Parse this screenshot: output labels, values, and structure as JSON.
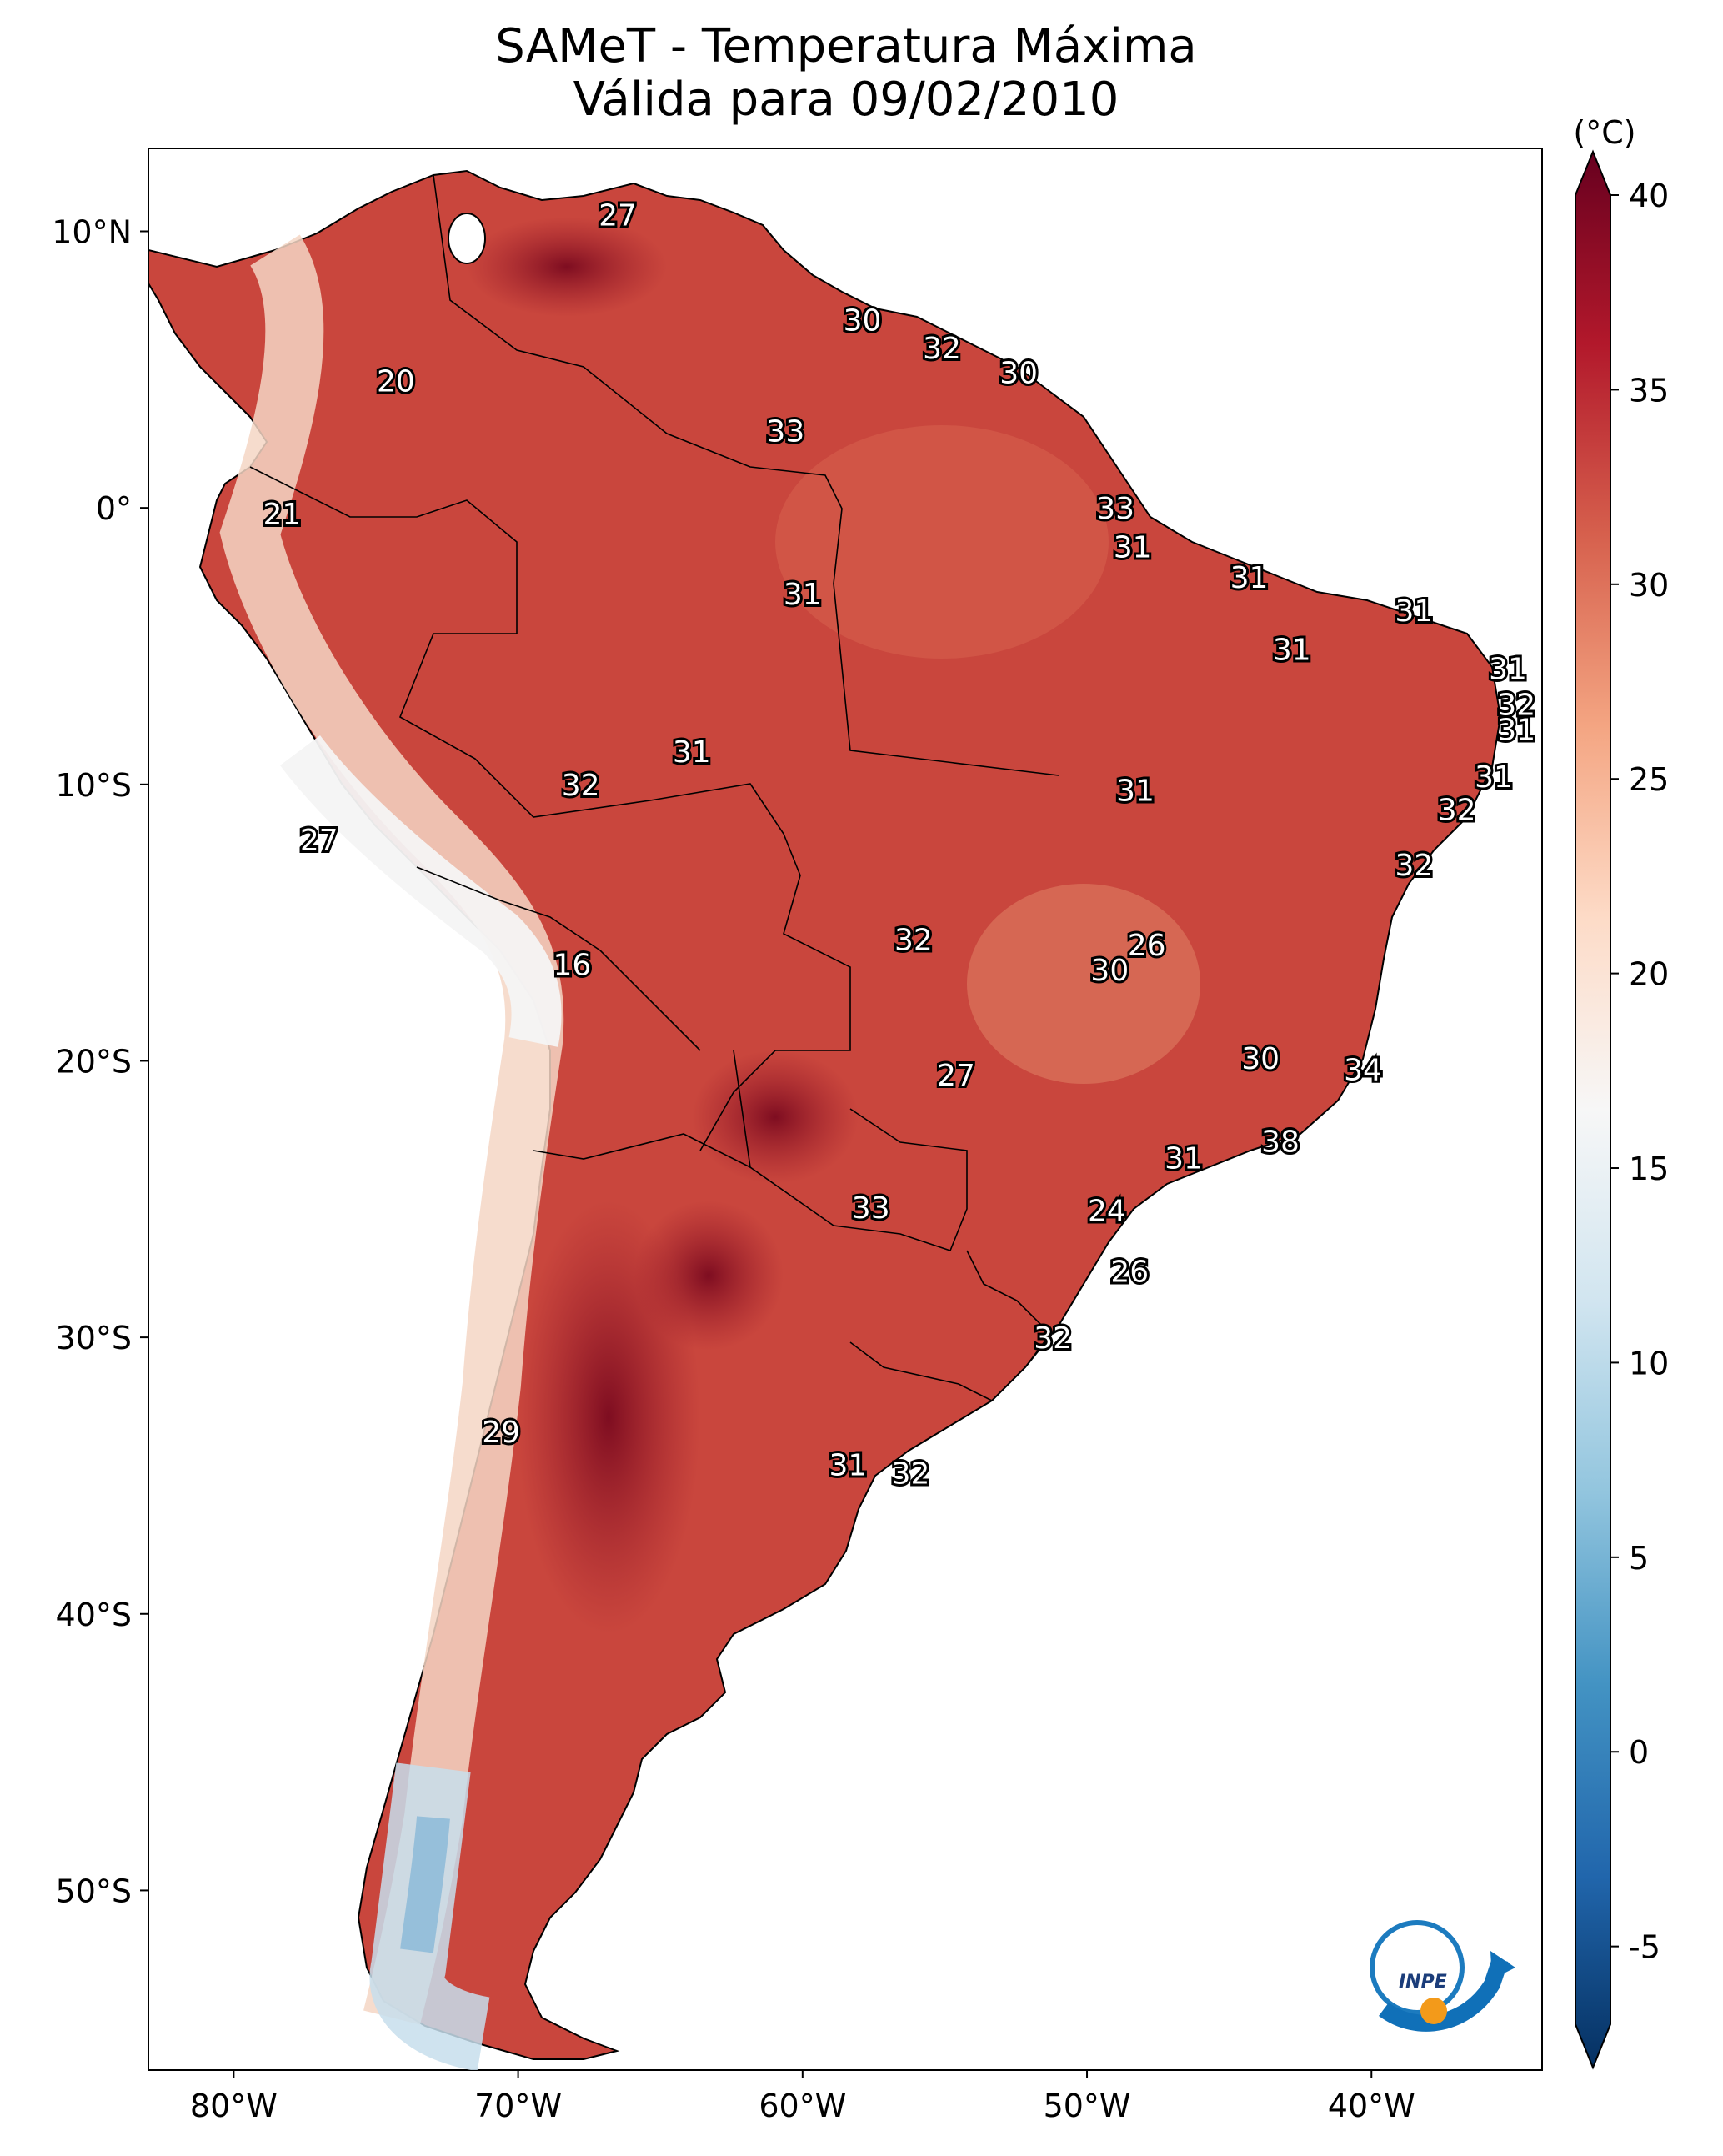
{
  "title": {
    "line1": "SAMeT - Temperatura Máxima",
    "line2": "Válida para 09/02/2010"
  },
  "unit_label": "(°C)",
  "lat_ticks": [
    {
      "label": "10°N",
      "lat": 10
    },
    {
      "label": "0°",
      "lat": 0
    },
    {
      "label": "10°S",
      "lat": -10
    },
    {
      "label": "20°S",
      "lat": -20
    },
    {
      "label": "30°S",
      "lat": -30
    },
    {
      "label": "40°S",
      "lat": -40
    },
    {
      "label": "50°S",
      "lat": -50
    }
  ],
  "lon_ticks": [
    {
      "label": "80°W",
      "lon": -80
    },
    {
      "label": "70°W",
      "lon": -70
    },
    {
      "label": "60°W",
      "lon": -60
    },
    {
      "label": "50°W",
      "lon": -50
    },
    {
      "label": "40°W",
      "lon": -40
    }
  ],
  "colorbar": {
    "min": -7,
    "max": 40,
    "ticks": [
      {
        "label": "40",
        "value": 40
      },
      {
        "label": "35",
        "value": 35
      },
      {
        "label": "30",
        "value": 30
      },
      {
        "label": "25",
        "value": 25
      },
      {
        "label": "20",
        "value": 20
      },
      {
        "label": "15",
        "value": 15
      },
      {
        "label": "10",
        "value": 10
      },
      {
        "label": "5",
        "value": 5
      },
      {
        "label": "0",
        "value": 0
      },
      {
        "label": "-5",
        "value": -5
      }
    ],
    "stops": [
      "#053061",
      "#2166ac",
      "#4393c3",
      "#92c5de",
      "#d1e5f0",
      "#f7f7f7",
      "#fddbc7",
      "#f4a582",
      "#d6604d",
      "#b2182b",
      "#67001f"
    ]
  },
  "station_values": [
    {
      "label": "27",
      "lon": -66.5,
      "lat": 10.6
    },
    {
      "label": "20",
      "lon": -74.3,
      "lat": 4.6
    },
    {
      "label": "30",
      "lon": -57.9,
      "lat": 6.8
    },
    {
      "label": "32",
      "lon": -55.1,
      "lat": 5.8
    },
    {
      "label": "30",
      "lon": -52.4,
      "lat": 4.9
    },
    {
      "label": "33",
      "lon": -60.6,
      "lat": 2.8
    },
    {
      "label": "21",
      "lon": -78.3,
      "lat": -0.2
    },
    {
      "label": "33",
      "lon": -49.0,
      "lat": 0.0
    },
    {
      "label": "31",
      "lon": -48.4,
      "lat": -1.4
    },
    {
      "label": "31",
      "lon": -44.3,
      "lat": -2.5
    },
    {
      "label": "31",
      "lon": -38.5,
      "lat": -3.7
    },
    {
      "label": "31",
      "lon": -60.0,
      "lat": -3.1
    },
    {
      "label": "31",
      "lon": -42.8,
      "lat": -5.1
    },
    {
      "label": "31",
      "lon": -35.2,
      "lat": -5.8
    },
    {
      "label": "32",
      "lon": -34.9,
      "lat": -7.1
    },
    {
      "label": "31",
      "lon": -34.9,
      "lat": -8.0
    },
    {
      "label": "31",
      "lon": -63.9,
      "lat": -8.8
    },
    {
      "label": "32",
      "lon": -67.8,
      "lat": -10.0
    },
    {
      "label": "31",
      "lon": -48.3,
      "lat": -10.2
    },
    {
      "label": "31",
      "lon": -35.7,
      "lat": -9.7
    },
    {
      "label": "32",
      "lon": -37.0,
      "lat": -10.9
    },
    {
      "label": "27",
      "lon": -77.0,
      "lat": -12.0
    },
    {
      "label": "32",
      "lon": -38.5,
      "lat": -12.9
    },
    {
      "label": "32",
      "lon": -56.1,
      "lat": -15.6
    },
    {
      "label": "26",
      "lon": -47.9,
      "lat": -15.8
    },
    {
      "label": "16",
      "lon": -68.1,
      "lat": -16.5
    },
    {
      "label": "30",
      "lon": -49.2,
      "lat": -16.7
    },
    {
      "label": "30",
      "lon": -43.9,
      "lat": -19.9
    },
    {
      "label": "34",
      "lon": -40.3,
      "lat": -20.3
    },
    {
      "label": "27",
      "lon": -54.6,
      "lat": -20.5
    },
    {
      "label": "38",
      "lon": -43.2,
      "lat": -22.9
    },
    {
      "label": "31",
      "lon": -46.6,
      "lat": -23.5
    },
    {
      "label": "33",
      "lon": -57.6,
      "lat": -25.3
    },
    {
      "label": "24",
      "lon": -49.3,
      "lat": -25.4
    },
    {
      "label": "26",
      "lon": -48.5,
      "lat": -27.6
    },
    {
      "label": "32",
      "lon": -51.2,
      "lat": -30.0
    },
    {
      "label": "29",
      "lon": -70.6,
      "lat": -33.4
    },
    {
      "label": "31",
      "lon": -58.4,
      "lat": -34.6
    },
    {
      "label": "32",
      "lon": -56.2,
      "lat": -34.9
    }
  ],
  "logo": {
    "text": "INPE"
  }
}
